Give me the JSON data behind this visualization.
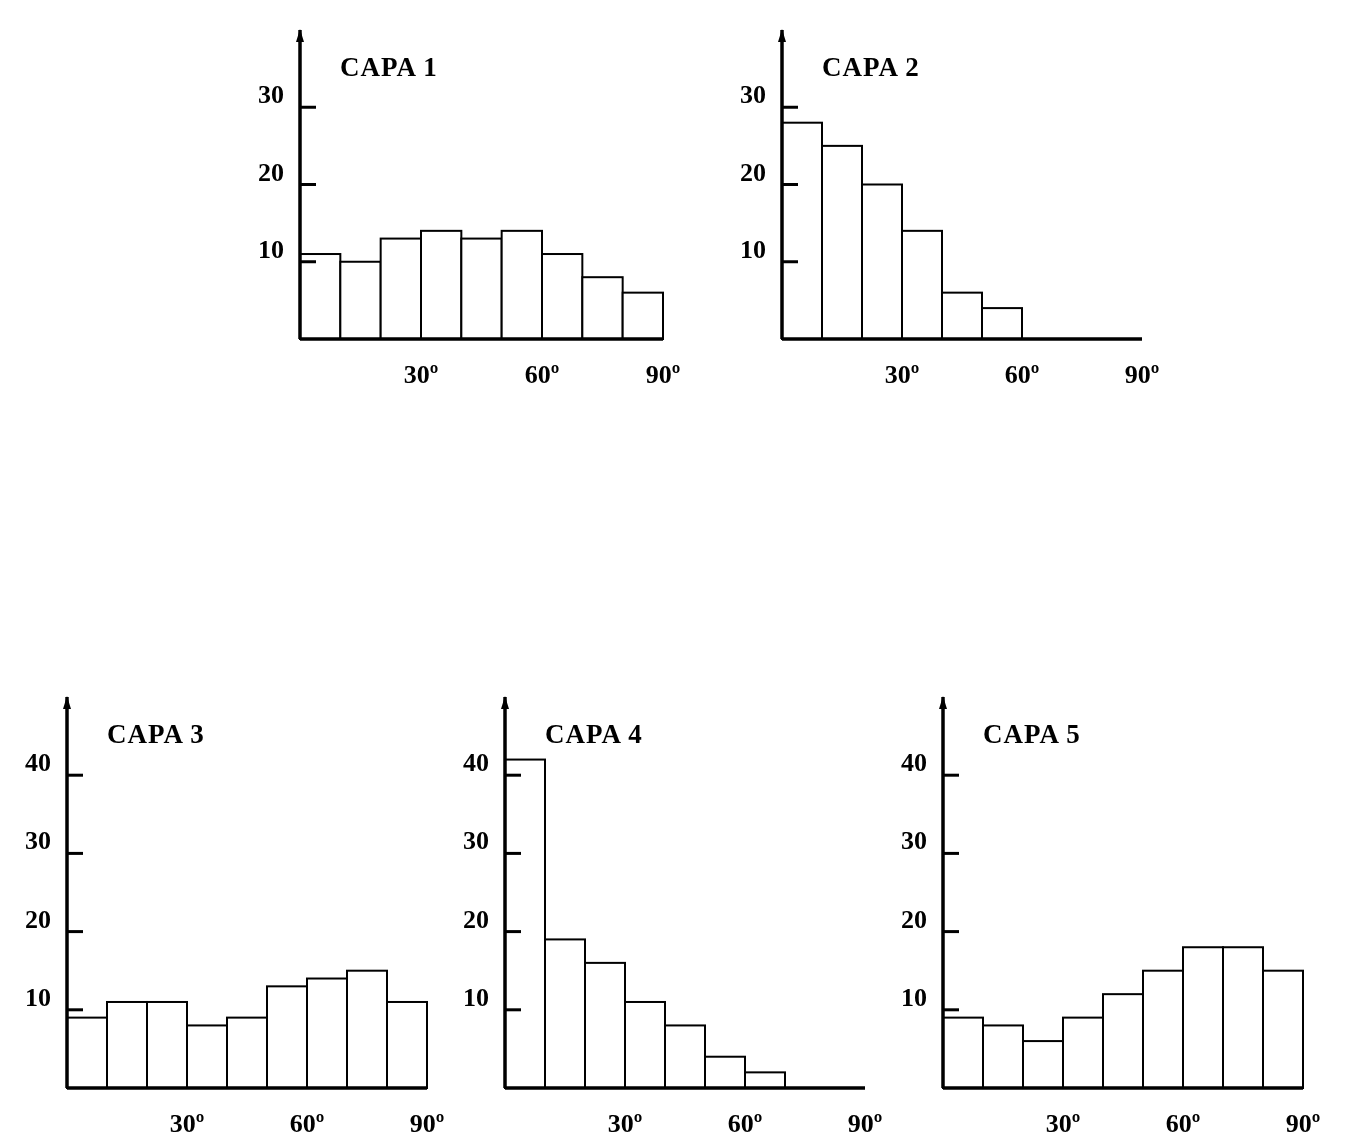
{
  "chart_data": [
    {
      "type": "histogram",
      "title": "CAPA 1",
      "bins": [
        0,
        10,
        20,
        30,
        40,
        50,
        60,
        70,
        80,
        90
      ],
      "values": [
        11,
        10,
        13,
        14,
        13,
        14,
        11,
        8,
        6
      ],
      "color": "#ffffff",
      "xlim": [
        0,
        90
      ],
      "xticks": [
        {
          "value": 30,
          "label": "30º"
        },
        {
          "value": 60,
          "label": "60º"
        },
        {
          "value": 90,
          "label": "90º"
        }
      ],
      "ylim": [
        0,
        40
      ],
      "yticks": [
        10,
        20,
        30
      ]
    },
    {
      "type": "histogram",
      "title": "CAPA 2",
      "bins": [
        0,
        10,
        20,
        30,
        40,
        50,
        60,
        70,
        80,
        90
      ],
      "values": [
        28,
        25,
        20,
        14,
        6,
        4,
        0,
        0,
        0
      ],
      "color": "#ffffff",
      "xlim": [
        0,
        90
      ],
      "xticks": [
        {
          "value": 30,
          "label": "30º"
        },
        {
          "value": 60,
          "label": "60º"
        },
        {
          "value": 90,
          "label": "90º"
        }
      ],
      "ylim": [
        0,
        40
      ],
      "yticks": [
        10,
        20,
        30
      ]
    },
    {
      "type": "histogram",
      "title": "CAPA 3",
      "bins": [
        0,
        10,
        20,
        30,
        40,
        50,
        60,
        70,
        80,
        90
      ],
      "values": [
        9,
        11,
        11,
        8,
        9,
        13,
        14,
        15,
        11
      ],
      "color": "#ffffff",
      "xlim": [
        0,
        90
      ],
      "xticks": [
        {
          "value": 30,
          "label": "30º"
        },
        {
          "value": 60,
          "label": "60º"
        },
        {
          "value": 90,
          "label": "90º"
        }
      ],
      "ylim": [
        0,
        50
      ],
      "yticks": [
        10,
        20,
        30,
        40
      ]
    },
    {
      "type": "histogram",
      "title": "CAPA 4",
      "bins": [
        0,
        10,
        20,
        30,
        40,
        50,
        60,
        70,
        80,
        90
      ],
      "values": [
        42,
        19,
        16,
        11,
        8,
        4,
        2,
        0,
        0
      ],
      "color": "#ffffff",
      "xlim": [
        0,
        90
      ],
      "xticks": [
        {
          "value": 30,
          "label": "30º"
        },
        {
          "value": 60,
          "label": "60º"
        },
        {
          "value": 90,
          "label": "90º"
        }
      ],
      "ylim": [
        0,
        50
      ],
      "yticks": [
        10,
        20,
        30,
        40
      ]
    },
    {
      "type": "histogram",
      "title": "CAPA 5",
      "bins": [
        0,
        10,
        20,
        30,
        40,
        50,
        60,
        70,
        80,
        90
      ],
      "values": [
        9,
        8,
        6,
        9,
        12,
        15,
        18,
        18,
        15
      ],
      "color": "#ffffff",
      "xlim": [
        0,
        90
      ],
      "xticks": [
        {
          "value": 30,
          "label": "30º"
        },
        {
          "value": 60,
          "label": "60º"
        },
        {
          "value": 90,
          "label": "90º"
        }
      ],
      "ylim": [
        0,
        50
      ],
      "yticks": [
        10,
        20,
        30,
        40
      ]
    }
  ]
}
